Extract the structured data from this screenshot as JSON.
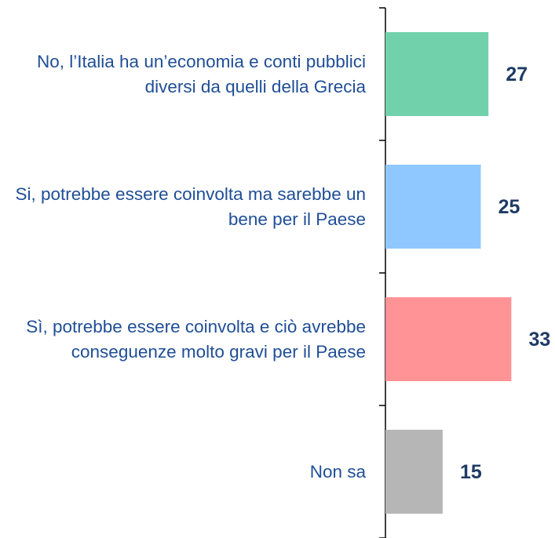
{
  "chart_data": {
    "type": "bar",
    "orientation": "horizontal",
    "categories": [
      "No, l’Italia ha un’economia e conti pubblici diversi da quelli della Grecia",
      "Si, potrebbe essere coinvolta ma sarebbe un bene per il Paese",
      "Sì, potrebbe essere coinvolta e ciò avrebbe conseguenze molto gravi per il Paese",
      "Non sa"
    ],
    "values": [
      27,
      25,
      33,
      15
    ],
    "colors": [
      "#70d1ab",
      "#8fc8ff",
      "#ff9395",
      "#b6b6b6"
    ]
  }
}
